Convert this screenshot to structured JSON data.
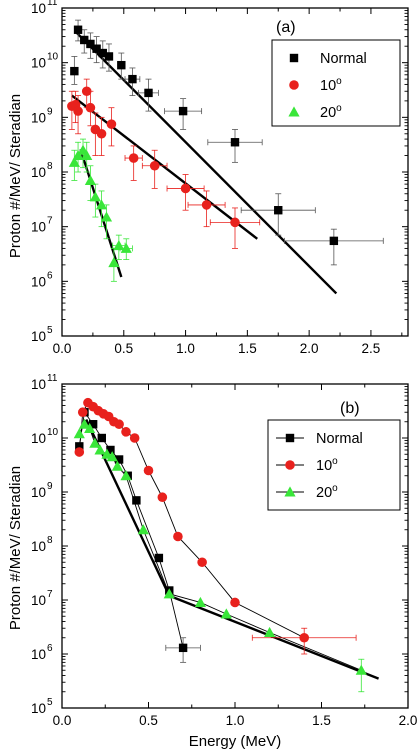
{
  "chart_data": [
    {
      "type": "scatter",
      "panel_label": "(a)",
      "xlabel": "",
      "ylabel": "Proton #/MeV/ Steradian",
      "xlim": [
        0,
        2.8
      ],
      "ylim_log10": [
        5,
        11
      ],
      "xscale": "linear",
      "yscale": "log",
      "x_ticks": [
        "0.0",
        "0.5",
        "1.0",
        "1.5",
        "2.0",
        "2.5"
      ],
      "x_tick_values": [
        0,
        0.5,
        1.0,
        1.5,
        2.0,
        2.5
      ],
      "y_tick_exponents": [
        5,
        6,
        7,
        8,
        9,
        10,
        11
      ],
      "y_tick_base": "10",
      "legend_position": "top-right",
      "series": [
        {
          "name": "Normal",
          "superscript": "",
          "marker": "square",
          "color": "#000000",
          "connect": false,
          "points": [
            {
              "x": 0.1,
              "y": 7000000000.0,
              "ylo": 4000000000.0,
              "yhi": 13000000000.0
            },
            {
              "x": 0.13,
              "y": 40000000000.0,
              "ylo": 25000000000.0,
              "yhi": 60000000000.0
            },
            {
              "x": 0.18,
              "y": 26000000000.0,
              "ylo": 15000000000.0,
              "yhi": 40000000000.0
            },
            {
              "x": 0.23,
              "y": 22000000000.0,
              "ylo": 12000000000.0,
              "yhi": 35000000000.0
            },
            {
              "x": 0.28,
              "y": 18000000000.0,
              "ylo": 10000000000.0,
              "yhi": 30000000000.0
            },
            {
              "x": 0.33,
              "y": 15000000000.0,
              "ylo": 8000000000.0,
              "yhi": 25000000000.0
            },
            {
              "x": 0.38,
              "y": 13000000000.0,
              "ylo": 7000000000.0,
              "yhi": 22000000000.0
            },
            {
              "x": 0.48,
              "y": 9000000000.0,
              "ylo": 5000000000.0,
              "yhi": 15000000000.0
            },
            {
              "x": 0.57,
              "y": 5000000000.0,
              "ylo": 2500000000.0,
              "yhi": 8000000000.0,
              "xerr": 0.06
            },
            {
              "x": 0.7,
              "y": 2800000000.0,
              "ylo": 1300000000.0,
              "yhi": 5000000000.0,
              "xerr": 0.08
            },
            {
              "x": 0.98,
              "y": 1300000000.0,
              "ylo": 600000000.0,
              "yhi": 2200000000.0,
              "xerr": 0.15
            },
            {
              "x": 1.4,
              "y": 350000000.0,
              "ylo": 150000000.0,
              "yhi": 600000000.0,
              "xerr": 0.22
            },
            {
              "x": 1.75,
              "y": 20000000.0,
              "ylo": 7000000.0,
              "yhi": 40000000.0,
              "xerr": 0.3
            },
            {
              "x": 2.2,
              "y": 5500000.0,
              "ylo": 2000000.0,
              "yhi": 9000000.0,
              "xerr": 0.4
            }
          ]
        },
        {
          "name": "10",
          "superscript": "o",
          "marker": "circle",
          "color": "#e8211d",
          "connect": false,
          "points": [
            {
              "x": 0.08,
              "y": 1600000000.0,
              "ylo": 600000000.0,
              "yhi": 3000000000.0
            },
            {
              "x": 0.11,
              "y": 1700000000.0,
              "ylo": 800000000.0,
              "yhi": 3000000000.0
            },
            {
              "x": 0.13,
              "y": 1300000000.0,
              "ylo": 500000000.0,
              "yhi": 2500000000.0
            },
            {
              "x": 0.2,
              "y": 3000000000.0,
              "ylo": 1500000000.0,
              "yhi": 5000000000.0
            },
            {
              "x": 0.23,
              "y": 1500000000.0,
              "ylo": 700000000.0,
              "yhi": 3000000000.0
            },
            {
              "x": 0.27,
              "y": 600000000.0,
              "ylo": 200000000.0,
              "yhi": 1200000000.0
            },
            {
              "x": 0.32,
              "y": 500000000.0,
              "ylo": 200000000.0,
              "yhi": 1000000000.0
            },
            {
              "x": 0.4,
              "y": 750000000.0,
              "ylo": 300000000.0,
              "yhi": 1500000000.0
            },
            {
              "x": 0.58,
              "y": 180000000.0,
              "ylo": 70000000.0,
              "yhi": 300000000.0,
              "xerr": 0.07
            },
            {
              "x": 0.75,
              "y": 130000000.0,
              "ylo": 50000000.0,
              "yhi": 250000000.0,
              "xerr": 0.1
            },
            {
              "x": 1.0,
              "y": 50000000.0,
              "ylo": 20000000.0,
              "yhi": 90000000.0,
              "xerr": 0.15
            },
            {
              "x": 1.17,
              "y": 25000000.0,
              "ylo": 10000000.0,
              "yhi": 45000000.0,
              "xerr": 0.15
            },
            {
              "x": 1.4,
              "y": 12000000.0,
              "ylo": 4000000.0,
              "yhi": 22000000.0,
              "xerr": 0.2
            }
          ]
        },
        {
          "name": "20",
          "superscript": "o",
          "marker": "triangle",
          "color": "#39e639",
          "connect": false,
          "points": [
            {
              "x": 0.1,
              "y": 150000000.0,
              "ylo": 70000000.0,
              "yhi": 250000000.0
            },
            {
              "x": 0.13,
              "y": 200000000.0,
              "ylo": 100000000.0,
              "yhi": 350000000.0
            },
            {
              "x": 0.17,
              "y": 250000000.0,
              "ylo": 120000000.0,
              "yhi": 400000000.0
            },
            {
              "x": 0.2,
              "y": 200000000.0,
              "ylo": 100000000.0,
              "yhi": 350000000.0
            },
            {
              "x": 0.23,
              "y": 70000000.0,
              "ylo": 30000000.0,
              "yhi": 130000000.0
            },
            {
              "x": 0.27,
              "y": 35000000.0,
              "ylo": 15000000.0,
              "yhi": 60000000.0
            },
            {
              "x": 0.32,
              "y": 25000000.0,
              "ylo": 10000000.0,
              "yhi": 45000000.0
            },
            {
              "x": 0.36,
              "y": 15000000.0,
              "ylo": 6000000.0,
              "yhi": 25000000.0
            },
            {
              "x": 0.42,
              "y": 2200000.0,
              "ylo": 1000000.0,
              "yhi": 4000000.0
            },
            {
              "x": 0.46,
              "y": 4500000.0,
              "ylo": 2500000.0,
              "yhi": 7000000.0,
              "xerr": 0.05
            },
            {
              "x": 0.52,
              "y": 4000000.0,
              "ylo": 2500000.0,
              "yhi": 6000000.0,
              "xerr": 0.05
            }
          ]
        }
      ],
      "fit_lines": [
        {
          "series": "Normal",
          "x": [
            0.12,
            2.22
          ],
          "y": [
            35000000000.0,
            600000.0
          ]
        },
        {
          "series": "10",
          "x": [
            0.08,
            1.58
          ],
          "y": [
            2500000000.0,
            6000000.0
          ]
        },
        {
          "series": "20",
          "x": [
            0.15,
            0.48
          ],
          "y": [
            260000000.0,
            1200000.0
          ]
        }
      ]
    },
    {
      "type": "line",
      "panel_label": "(b)",
      "xlabel": "Energy (MeV)",
      "ylabel": "Proton #/MeV/ Steradian",
      "xlim": [
        0,
        2.0
      ],
      "ylim_log10": [
        5,
        11
      ],
      "xscale": "linear",
      "yscale": "log",
      "x_ticks": [
        "0.0",
        "0.5",
        "1.0",
        "1.5",
        "2.0"
      ],
      "x_tick_values": [
        0,
        0.5,
        1.0,
        1.5,
        2.0
      ],
      "y_tick_exponents": [
        5,
        6,
        7,
        8,
        9,
        10,
        11
      ],
      "y_tick_base": "10",
      "legend_position": "top-right",
      "series": [
        {
          "name": "Normal",
          "superscript": "",
          "marker": "square",
          "color": "#000000",
          "connect": true,
          "points": [
            {
              "x": 0.1,
              "y": 7000000000.0
            },
            {
              "x": 0.13,
              "y": 30000000000.0
            },
            {
              "x": 0.18,
              "y": 18000000000.0
            },
            {
              "x": 0.23,
              "y": 10000000000.0
            },
            {
              "x": 0.28,
              "y": 6000000000.0
            },
            {
              "x": 0.33,
              "y": 4000000000.0
            },
            {
              "x": 0.38,
              "y": 2000000000.0
            },
            {
              "x": 0.43,
              "y": 700000000.0
            },
            {
              "x": 0.56,
              "y": 60000000.0
            },
            {
              "x": 0.62,
              "y": 15000000.0
            },
            {
              "x": 0.7,
              "y": 1300000.0,
              "ylo": 700000.0,
              "yhi": 2000000.0,
              "xerr": 0.1
            }
          ]
        },
        {
          "name": "10",
          "superscript": "o",
          "marker": "circle",
          "color": "#e8211d",
          "connect": true,
          "points": [
            {
              "x": 0.1,
              "y": 5500000000.0
            },
            {
              "x": 0.12,
              "y": 30000000000.0
            },
            {
              "x": 0.15,
              "y": 45000000000.0
            },
            {
              "x": 0.18,
              "y": 38000000000.0
            },
            {
              "x": 0.21,
              "y": 32000000000.0
            },
            {
              "x": 0.24,
              "y": 28000000000.0
            },
            {
              "x": 0.27,
              "y": 25000000000.0
            },
            {
              "x": 0.3,
              "y": 20000000000.0
            },
            {
              "x": 0.33,
              "y": 18000000000.0
            },
            {
              "x": 0.37,
              "y": 13000000000.0
            },
            {
              "x": 0.42,
              "y": 10000000000.0
            },
            {
              "x": 0.5,
              "y": 2500000000.0
            },
            {
              "x": 0.58,
              "y": 800000000.0
            },
            {
              "x": 0.67,
              "y": 150000000.0
            },
            {
              "x": 0.81,
              "y": 50000000.0
            },
            {
              "x": 1.0,
              "y": 9000000.0
            },
            {
              "x": 1.4,
              "y": 2000000.0,
              "ylo": 1000000.0,
              "yhi": 3000000.0,
              "xerr": 0.3
            }
          ]
        },
        {
          "name": "20",
          "superscript": "o",
          "marker": "triangle",
          "color": "#39e639",
          "connect": true,
          "points": [
            {
              "x": 0.1,
              "y": 12000000000.0
            },
            {
              "x": 0.13,
              "y": 18000000000.0
            },
            {
              "x": 0.16,
              "y": 15000000000.0
            },
            {
              "x": 0.19,
              "y": 8000000000.0
            },
            {
              "x": 0.22,
              "y": 6000000000.0
            },
            {
              "x": 0.26,
              "y": 5000000000.0
            },
            {
              "x": 0.29,
              "y": 4500000000.0
            },
            {
              "x": 0.32,
              "y": 3000000000.0
            },
            {
              "x": 0.37,
              "y": 2000000000.0
            },
            {
              "x": 0.47,
              "y": 200000000.0
            },
            {
              "x": 0.62,
              "y": 13000000.0
            },
            {
              "x": 0.8,
              "y": 9000000.0
            },
            {
              "x": 0.95,
              "y": 5500000.0
            },
            {
              "x": 1.2,
              "y": 2500000.0
            },
            {
              "x": 1.73,
              "y": 500000.0,
              "ylo": 200000.0,
              "yhi": 800000.0
            }
          ]
        }
      ],
      "fit_lines": [
        {
          "series": "Normal",
          "x": [
            0.14,
            0.62
          ],
          "y": [
            22000000000.0,
            12000000.0
          ]
        },
        {
          "series": "Normal",
          "x": [
            0.62,
            1.83
          ],
          "y": [
            12000000.0,
            350000.0
          ]
        }
      ]
    }
  ]
}
